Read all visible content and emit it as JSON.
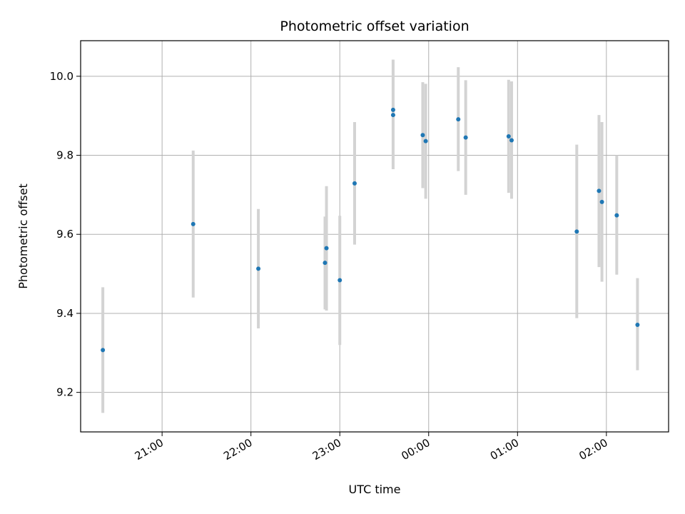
{
  "chart_data": {
    "type": "scatter",
    "title": "Photometric offset variation",
    "xlabel": "UTC time",
    "ylabel": "Photometric offset",
    "x_unit": "time",
    "xlim": [
      "20:05",
      "02:42"
    ],
    "ylim": [
      9.1,
      10.09
    ],
    "x_ticks": [
      "21:00",
      "22:00",
      "23:00",
      "00:00",
      "01:00",
      "02:00"
    ],
    "y_ticks": [
      9.2,
      9.4,
      9.6,
      9.8,
      10.0
    ],
    "grid": true,
    "marker_color": "#1f77b4",
    "errorbar_color": "#d3d3d3",
    "points": [
      {
        "time": "20:20",
        "y": 9.307,
        "ylow": 9.148,
        "yhigh": 9.466
      },
      {
        "time": "21:21",
        "y": 9.626,
        "ylow": 9.44,
        "yhigh": 9.812
      },
      {
        "time": "22:05",
        "y": 9.513,
        "ylow": 9.362,
        "yhigh": 9.664
      },
      {
        "time": "22:50",
        "y": 9.528,
        "ylow": 9.41,
        "yhigh": 9.645
      },
      {
        "time": "22:51",
        "y": 9.565,
        "ylow": 9.407,
        "yhigh": 9.722
      },
      {
        "time": "23:00",
        "y": 9.484,
        "ylow": 9.32,
        "yhigh": 9.647
      },
      {
        "time": "23:10",
        "y": 9.729,
        "ylow": 9.574,
        "yhigh": 9.884
      },
      {
        "time": "23:36",
        "y": 9.915,
        "ylow": 9.765,
        "yhigh": 10.042
      },
      {
        "time": "23:36",
        "y": 9.902,
        "ylow": 9.765,
        "yhigh": 10.042
      },
      {
        "time": "23:56",
        "y": 9.851,
        "ylow": 9.717,
        "yhigh": 9.985
      },
      {
        "time": "23:58",
        "y": 9.836,
        "ylow": 9.69,
        "yhigh": 9.981
      },
      {
        "time": "00:20",
        "y": 9.891,
        "ylow": 9.76,
        "yhigh": 10.023
      },
      {
        "time": "00:25",
        "y": 9.845,
        "ylow": 9.7,
        "yhigh": 9.99
      },
      {
        "time": "00:54",
        "y": 9.848,
        "ylow": 9.705,
        "yhigh": 9.991
      },
      {
        "time": "00:56",
        "y": 9.838,
        "ylow": 9.69,
        "yhigh": 9.987
      },
      {
        "time": "01:40",
        "y": 9.607,
        "ylow": 9.388,
        "yhigh": 9.827
      },
      {
        "time": "01:55",
        "y": 9.71,
        "ylow": 9.517,
        "yhigh": 9.902
      },
      {
        "time": "01:57",
        "y": 9.682,
        "ylow": 9.48,
        "yhigh": 9.884
      },
      {
        "time": "02:07",
        "y": 9.648,
        "ylow": 9.498,
        "yhigh": 9.8
      },
      {
        "time": "02:21",
        "y": 9.371,
        "ylow": 9.256,
        "yhigh": 9.489
      }
    ]
  }
}
